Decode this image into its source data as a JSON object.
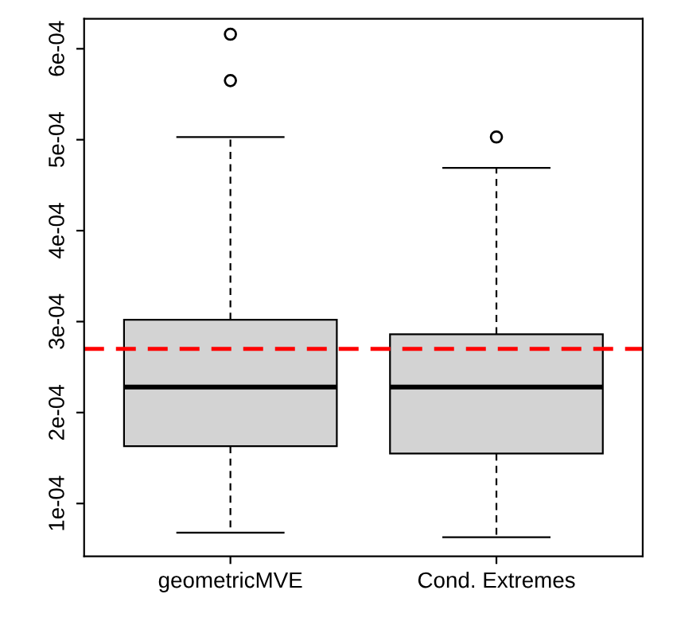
{
  "chart_data": {
    "type": "box",
    "categories": [
      "geometricMVE",
      "Cond. Extremes"
    ],
    "boxes": [
      {
        "low": 6.8e-05,
        "q1": 0.000163,
        "median": 0.000228,
        "q3": 0.000302,
        "high": 0.000503,
        "outliers": [
          0.000616,
          0.000565
        ]
      },
      {
        "low": 6.3e-05,
        "q1": 0.000155,
        "median": 0.000228,
        "q3": 0.000286,
        "high": 0.000469,
        "outliers": [
          0.000503
        ]
      }
    ],
    "color": "#d3d3d3",
    "ylim": [
      4.2e-05,
      0.000633
    ],
    "yticks": [
      {
        "value": 0.0001,
        "label": "1e-04"
      },
      {
        "value": 0.0002,
        "label": "2e-04"
      },
      {
        "value": 0.0003,
        "label": "3e-04"
      },
      {
        "value": 0.0004,
        "label": "4e-04"
      },
      {
        "value": 0.0005,
        "label": "5e-04"
      },
      {
        "value": 0.0006,
        "label": "6e-04"
      }
    ],
    "ref_lines": [
      {
        "axis": "y",
        "value": 0.00027,
        "color": "#ff0000",
        "line_style": "dashed"
      }
    ],
    "grid": false
  }
}
